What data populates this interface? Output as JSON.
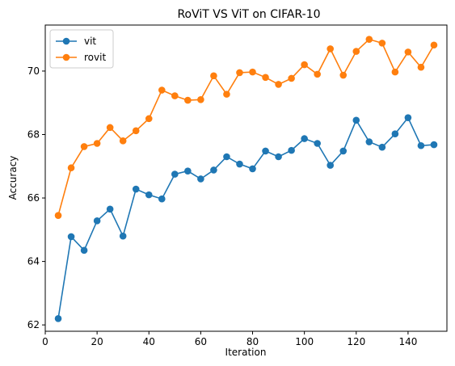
{
  "chart_data": {
    "type": "line",
    "title": "RoViT VS ViT on CIFAR-10",
    "xlabel": "Iteration",
    "ylabel": "Accuracy",
    "xlim": [
      0,
      155
    ],
    "ylim": [
      61.8,
      71.45
    ],
    "xticks": [
      0,
      20,
      40,
      60,
      80,
      100,
      120,
      140
    ],
    "yticks": [
      62,
      64,
      66,
      68,
      70
    ],
    "grid": false,
    "legend_position": "top-left",
    "x": [
      5,
      10,
      15,
      20,
      25,
      30,
      35,
      40,
      45,
      50,
      55,
      60,
      65,
      70,
      75,
      80,
      85,
      90,
      95,
      100,
      105,
      110,
      115,
      120,
      125,
      130,
      135,
      140,
      145,
      150
    ],
    "series": [
      {
        "name": "vit",
        "color": "#1f77b4",
        "values": [
          62.2,
          64.78,
          64.35,
          65.28,
          65.65,
          64.8,
          66.28,
          66.1,
          65.97,
          66.75,
          66.85,
          66.6,
          66.88,
          67.3,
          67.07,
          66.92,
          67.48,
          67.3,
          67.5,
          67.87,
          67.72,
          67.03,
          67.48,
          68.45,
          67.77,
          67.6,
          68.02,
          68.53,
          67.65,
          67.68
        ]
      },
      {
        "name": "rovit",
        "color": "#ff7f0e",
        "values": [
          65.45,
          66.95,
          67.62,
          67.72,
          68.22,
          67.8,
          68.12,
          68.5,
          69.4,
          69.22,
          69.08,
          69.1,
          69.85,
          69.27,
          69.95,
          69.97,
          69.8,
          69.58,
          69.77,
          70.2,
          69.9,
          70.7,
          69.87,
          70.62,
          71.0,
          70.88,
          69.97,
          70.6,
          70.12,
          70.82
        ]
      }
    ]
  }
}
